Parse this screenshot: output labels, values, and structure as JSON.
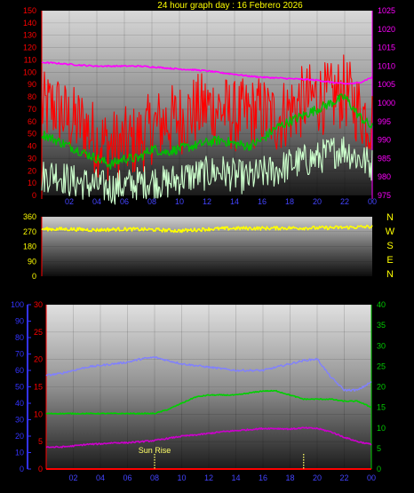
{
  "title": "24 hour graph day : 16 Febrero 2026",
  "x_ticks": [
    "02",
    "04",
    "06",
    "08",
    "10",
    "12",
    "14",
    "16",
    "18",
    "20",
    "22",
    "00"
  ],
  "colors": {
    "title": "#ffff00",
    "tick_default": "#4444ff",
    "pressure": "#ff00ff",
    "wind_gust": "#ff0000",
    "wind_avg": "#00c000",
    "wind_light": "#ccffcc",
    "direction": "#ffff00",
    "humidity": "#8080ff",
    "temperature": "#00d000",
    "dewpoint": "#cc00cc",
    "rain": "#ff0000",
    "sunrise": "#ffff66",
    "axis_blue": "#3333ff",
    "axis_red": "#ff0000",
    "axis_green": "#00cc00"
  },
  "chart_data": [
    {
      "id": "wind-pressure",
      "type": "line",
      "x_label_hours": [
        2,
        4,
        6,
        8,
        10,
        12,
        14,
        16,
        18,
        20,
        22,
        24
      ],
      "x_range_hours": [
        0,
        24
      ],
      "left_axis": {
        "ylim": [
          0,
          150
        ],
        "ticks": [
          0,
          10,
          20,
          30,
          40,
          50,
          60,
          70,
          80,
          90,
          100,
          110,
          120,
          130,
          140,
          150
        ]
      },
      "right_axis": {
        "ylim": [
          975,
          1025
        ],
        "ticks": [
          975,
          980,
          985,
          990,
          995,
          1000,
          1005,
          1010,
          1015,
          1020,
          1025
        ]
      },
      "series": [
        {
          "key": "pressure",
          "axis": "right",
          "x": [
            0,
            1,
            2,
            3,
            4,
            5,
            6,
            7,
            8,
            9,
            10,
            11,
            12,
            13,
            14,
            15,
            16,
            17,
            18,
            19,
            20,
            21,
            22,
            23,
            24
          ],
          "values": [
            1011,
            1010.8,
            1010.5,
            1010.2,
            1010,
            1010,
            1010,
            1010,
            1009.8,
            1009.5,
            1009.2,
            1009,
            1008.7,
            1008.2,
            1007.8,
            1007.3,
            1007,
            1006.8,
            1006.6,
            1006.4,
            1006.2,
            1005.6,
            1005.2,
            1005.4,
            1007
          ]
        },
        {
          "key": "wind_gust",
          "axis": "left",
          "x": [
            0,
            1,
            2,
            3,
            4,
            5,
            6,
            7,
            8,
            9,
            10,
            11,
            12,
            13,
            14,
            15,
            16,
            17,
            18,
            19,
            20,
            21,
            22,
            23,
            24
          ],
          "values": [
            70,
            72,
            60,
            58,
            45,
            40,
            42,
            45,
            55,
            60,
            62,
            68,
            72,
            70,
            64,
            66,
            68,
            62,
            70,
            76,
            80,
            78,
            85,
            70,
            60
          ]
        },
        {
          "key": "wind_avg",
          "axis": "left",
          "x": [
            0,
            1,
            2,
            3,
            4,
            5,
            6,
            7,
            8,
            9,
            10,
            11,
            12,
            13,
            14,
            15,
            16,
            17,
            18,
            19,
            20,
            21,
            22,
            23,
            24
          ],
          "values": [
            50,
            45,
            40,
            35,
            30,
            25,
            30,
            30,
            38,
            35,
            38,
            40,
            43,
            45,
            42,
            40,
            45,
            55,
            60,
            65,
            70,
            75,
            80,
            65,
            55
          ]
        },
        {
          "key": "wind_light",
          "axis": "left",
          "x": [
            0,
            1,
            2,
            3,
            4,
            5,
            6,
            7,
            8,
            9,
            10,
            11,
            12,
            13,
            14,
            15,
            16,
            17,
            18,
            19,
            20,
            21,
            22,
            23,
            24
          ],
          "values": [
            15,
            18,
            12,
            10,
            8,
            6,
            8,
            10,
            12,
            10,
            14,
            16,
            18,
            20,
            16,
            14,
            18,
            20,
            25,
            28,
            30,
            35,
            38,
            30,
            25
          ]
        }
      ]
    },
    {
      "id": "wind-direction",
      "type": "line",
      "x_range_hours": [
        0,
        24
      ],
      "ylim": [
        0,
        360
      ],
      "yticks": [
        0,
        90,
        180,
        270,
        360
      ],
      "right_labels": [
        "N",
        "W",
        "S",
        "E",
        "N"
      ],
      "series": [
        {
          "key": "direction",
          "x": [
            0,
            2,
            4,
            6,
            8,
            10,
            12,
            14,
            16,
            18,
            20,
            22,
            24
          ],
          "values": [
            285,
            285,
            280,
            285,
            282,
            275,
            285,
            290,
            290,
            292,
            292,
            295,
            300
          ]
        }
      ]
    },
    {
      "id": "temp-humidity",
      "type": "line",
      "x_range_hours": [
        0,
        24
      ],
      "axis_humidity": {
        "ylim": [
          0,
          100
        ],
        "ticks": [
          0,
          10,
          20,
          30,
          40,
          50,
          60,
          70,
          80,
          90,
          100
        ]
      },
      "axis_red": {
        "ylim": [
          0,
          30
        ],
        "ticks": [
          0,
          5,
          10,
          15,
          20,
          25,
          30
        ]
      },
      "axis_green": {
        "ylim": [
          0,
          40
        ],
        "ticks": [
          0,
          5,
          10,
          15,
          20,
          25,
          30,
          35,
          40
        ]
      },
      "annotation": "Sun Rise",
      "markers_hours": [
        8,
        19
      ],
      "series": [
        {
          "key": "humidity",
          "axis": "humidity",
          "x": [
            0,
            1,
            2,
            3,
            4,
            5,
            6,
            7,
            8,
            9,
            10,
            11,
            12,
            13,
            14,
            15,
            16,
            17,
            18,
            19,
            20,
            21,
            22,
            23,
            24
          ],
          "values": [
            57,
            58,
            60,
            62,
            63,
            64,
            65,
            67,
            68,
            66,
            64,
            63,
            62,
            61,
            60,
            60,
            60,
            62,
            64,
            66,
            67,
            56,
            48,
            48,
            53
          ]
        },
        {
          "key": "temperature",
          "axis": "green",
          "x": [
            0,
            1,
            2,
            3,
            4,
            5,
            6,
            7,
            8,
            9,
            10,
            11,
            12,
            13,
            14,
            15,
            16,
            17,
            18,
            19,
            20,
            21,
            22,
            23,
            24
          ],
          "values": [
            13.5,
            13.5,
            13.5,
            13.5,
            13.5,
            13.5,
            13.5,
            13.5,
            13.5,
            14.5,
            16,
            17.5,
            18,
            18,
            18,
            18.5,
            19,
            19,
            18,
            17,
            17,
            17,
            16.5,
            16.5,
            15
          ]
        },
        {
          "key": "dewpoint",
          "axis": "red",
          "x": [
            0,
            1,
            2,
            3,
            4,
            5,
            6,
            7,
            8,
            9,
            10,
            11,
            12,
            13,
            14,
            15,
            16,
            17,
            18,
            19,
            20,
            21,
            22,
            23,
            24
          ],
          "values": [
            4,
            4,
            4.2,
            4.5,
            4.6,
            4.8,
            4.8,
            5,
            5.2,
            5.6,
            6,
            6.2,
            6.5,
            6.8,
            7,
            7.2,
            7.4,
            7.4,
            7.3,
            7.5,
            7.4,
            6.8,
            5.8,
            5,
            4.5
          ]
        },
        {
          "key": "rain",
          "axis": "red",
          "x": [
            0,
            24
          ],
          "values": [
            0,
            0
          ]
        }
      ]
    }
  ]
}
